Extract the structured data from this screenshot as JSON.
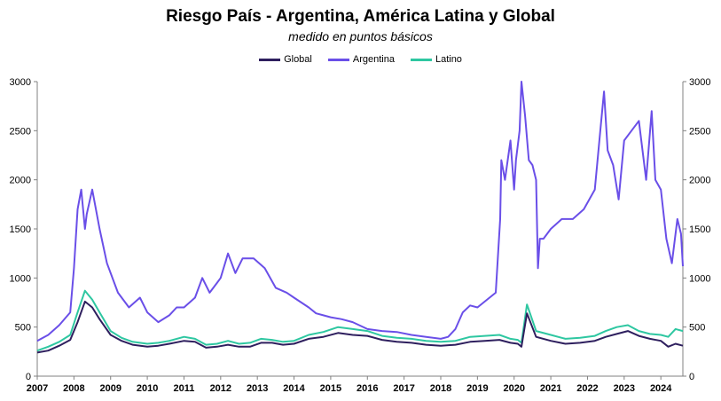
{
  "chart_data": {
    "type": "line",
    "title": "Riesgo País - Argentina, América Latina y Global",
    "subtitle": "medido en puntos básicos",
    "ylim": [
      0,
      3000
    ],
    "xlim": [
      2007,
      2024.6
    ],
    "y_ticks": [
      0,
      500,
      1000,
      1500,
      2000,
      2500,
      3000
    ],
    "x_ticks": [
      2007,
      2008,
      2009,
      2010,
      2011,
      2012,
      2013,
      2014,
      2015,
      2016,
      2017,
      2018,
      2019,
      2020,
      2021,
      2022,
      2023,
      2024
    ],
    "grid": false,
    "legend_position": "top-center",
    "series": [
      {
        "name": "Global",
        "color": "#2e1f5e",
        "x": [
          2007.0,
          2007.3,
          2007.6,
          2007.9,
          2008.1,
          2008.3,
          2008.5,
          2008.7,
          2009.0,
          2009.3,
          2009.6,
          2010.0,
          2010.3,
          2010.6,
          2011.0,
          2011.3,
          2011.6,
          2011.9,
          2012.2,
          2012.5,
          2012.8,
          2013.1,
          2013.4,
          2013.7,
          2014.0,
          2014.4,
          2014.8,
          2015.2,
          2015.6,
          2016.0,
          2016.4,
          2016.8,
          2017.2,
          2017.6,
          2018.0,
          2018.4,
          2018.8,
          2019.2,
          2019.6,
          2019.9,
          2020.1,
          2020.2,
          2020.35,
          2020.6,
          2021.0,
          2021.4,
          2021.8,
          2022.2,
          2022.5,
          2022.8,
          2023.1,
          2023.4,
          2023.7,
          2024.0,
          2024.2,
          2024.4,
          2024.6
        ],
        "values": [
          240,
          260,
          310,
          370,
          550,
          760,
          700,
          580,
          420,
          360,
          320,
          300,
          310,
          330,
          360,
          350,
          290,
          300,
          320,
          300,
          300,
          340,
          340,
          320,
          330,
          380,
          400,
          440,
          420,
          410,
          370,
          350,
          340,
          320,
          310,
          320,
          350,
          360,
          370,
          340,
          330,
          300,
          640,
          400,
          360,
          330,
          340,
          360,
          400,
          430,
          460,
          410,
          380,
          360,
          300,
          330,
          310
        ]
      },
      {
        "name": "Argentina",
        "color": "#6a4fe8",
        "x": [
          2007.0,
          2007.3,
          2007.6,
          2007.9,
          2008.0,
          2008.1,
          2008.2,
          2008.3,
          2008.35,
          2008.5,
          2008.7,
          2008.9,
          2009.2,
          2009.5,
          2009.8,
          2010.0,
          2010.3,
          2010.6,
          2010.8,
          2011.0,
          2011.3,
          2011.5,
          2011.7,
          2011.9,
          2012.0,
          2012.2,
          2012.4,
          2012.6,
          2012.9,
          2013.2,
          2013.5,
          2013.8,
          2014.0,
          2014.2,
          2014.4,
          2014.6,
          2014.8,
          2015.0,
          2015.3,
          2015.6,
          2016.0,
          2016.4,
          2016.8,
          2017.2,
          2017.6,
          2018.0,
          2018.2,
          2018.4,
          2018.6,
          2018.8,
          2019.0,
          2019.2,
          2019.5,
          2019.62,
          2019.65,
          2019.75,
          2019.9,
          2020.0,
          2020.05,
          2020.15,
          2020.2,
          2020.3,
          2020.4,
          2020.5,
          2020.6,
          2020.65,
          2020.7,
          2020.8,
          2021.0,
          2021.3,
          2021.6,
          2021.9,
          2022.2,
          2022.35,
          2022.45,
          2022.55,
          2022.7,
          2022.85,
          2023.0,
          2023.2,
          2023.4,
          2023.6,
          2023.75,
          2023.85,
          2024.0,
          2024.15,
          2024.3,
          2024.45,
          2024.55,
          2024.6
        ],
        "values": [
          360,
          420,
          520,
          650,
          1100,
          1700,
          1900,
          1500,
          1650,
          1900,
          1500,
          1150,
          850,
          700,
          800,
          650,
          550,
          620,
          700,
          700,
          800,
          1000,
          850,
          950,
          1000,
          1250,
          1050,
          1200,
          1200,
          1100,
          900,
          850,
          800,
          750,
          700,
          640,
          620,
          600,
          580,
          550,
          480,
          460,
          450,
          420,
          400,
          380,
          400,
          480,
          650,
          720,
          700,
          760,
          850,
          1600,
          2200,
          2000,
          2400,
          1900,
          2200,
          2500,
          3000,
          2650,
          2200,
          2150,
          2000,
          1100,
          1400,
          1400,
          1500,
          1600,
          1600,
          1700,
          1900,
          2500,
          2900,
          2300,
          2150,
          1800,
          2400,
          2500,
          2600,
          2000,
          2700,
          2000,
          1900,
          1400,
          1150,
          1600,
          1450,
          1120
        ]
      },
      {
        "name": "Latino",
        "color": "#2ec7a1",
        "x": [
          2007.0,
          2007.3,
          2007.6,
          2007.9,
          2008.1,
          2008.3,
          2008.5,
          2008.7,
          2009.0,
          2009.3,
          2009.6,
          2010.0,
          2010.3,
          2010.6,
          2011.0,
          2011.3,
          2011.6,
          2011.9,
          2012.2,
          2012.5,
          2012.8,
          2013.1,
          2013.4,
          2013.7,
          2014.0,
          2014.4,
          2014.8,
          2015.2,
          2015.6,
          2016.0,
          2016.4,
          2016.8,
          2017.2,
          2017.6,
          2018.0,
          2018.4,
          2018.8,
          2019.2,
          2019.6,
          2019.9,
          2020.1,
          2020.2,
          2020.35,
          2020.6,
          2021.0,
          2021.4,
          2021.8,
          2022.2,
          2022.5,
          2022.8,
          2023.1,
          2023.4,
          2023.7,
          2024.0,
          2024.2,
          2024.4,
          2024.6
        ],
        "values": [
          260,
          300,
          350,
          420,
          650,
          870,
          780,
          650,
          460,
          390,
          350,
          330,
          340,
          360,
          400,
          380,
          320,
          330,
          360,
          330,
          340,
          380,
          370,
          350,
          360,
          420,
          450,
          500,
          480,
          460,
          410,
          390,
          380,
          360,
          350,
          360,
          400,
          410,
          420,
          380,
          370,
          340,
          730,
          460,
          420,
          380,
          390,
          410,
          460,
          500,
          520,
          460,
          430,
          420,
          400,
          480,
          460
        ]
      }
    ]
  }
}
